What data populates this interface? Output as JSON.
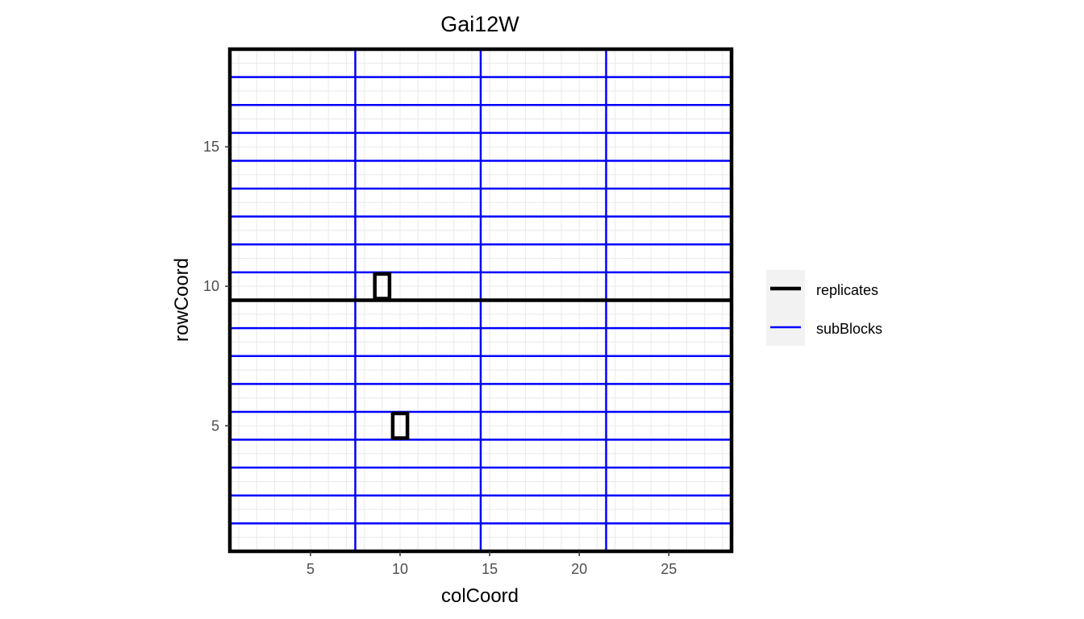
{
  "chart_data": {
    "type": "line",
    "title": "Gai12W",
    "xlabel": "colCoord",
    "ylabel": "rowCoord",
    "xlim": [
      0.5,
      28.5
    ],
    "ylim": [
      0.5,
      18.5
    ],
    "x_ticks": [
      5,
      10,
      15,
      20,
      25
    ],
    "y_ticks": [
      5,
      10,
      15
    ],
    "grid": "minor lines at every plot unit",
    "legend_position": "right",
    "colors": {
      "replicates": "#000000",
      "subBlocks": "#0000ff",
      "grid": "#ebebeb"
    },
    "series": [
      {
        "name": "replicates",
        "color": "#000000",
        "boundary_outline": [
          0.5,
          28.5,
          0.5,
          18.5
        ],
        "horizontal_lines_y": [
          9.5
        ],
        "plot_markers": [
          {
            "x": [
              8.5,
              9.5
            ],
            "y": [
              9.5,
              10.5
            ]
          },
          {
            "x": [
              9.5,
              10.5
            ],
            "y": [
              4.5,
              5.5
            ]
          }
        ]
      },
      {
        "name": "subBlocks",
        "color": "#0000ff",
        "horizontal_lines_y": [
          1.5,
          2.5,
          3.5,
          4.5,
          5.5,
          6.5,
          7.5,
          8.5,
          10.5,
          11.5,
          12.5,
          13.5,
          14.5,
          15.5,
          16.5,
          17.5
        ],
        "vertical_lines_x": [
          7.5,
          14.5,
          21.5
        ]
      }
    ]
  }
}
